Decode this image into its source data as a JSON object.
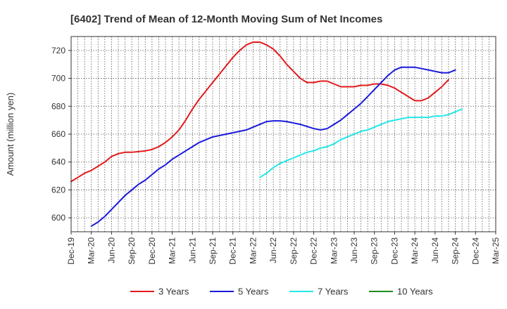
{
  "chart_data": {
    "type": "line",
    "title": "[6402]  Trend of Mean of 12-Month Moving Sum of Net Incomes",
    "ylabel": "Amount (million yen)",
    "xlabel": "",
    "ylim": [
      590,
      730
    ],
    "yticks": [
      600,
      620,
      640,
      660,
      680,
      700,
      720
    ],
    "xticks": [
      "Dec-19",
      "Mar-20",
      "Jun-20",
      "Sep-20",
      "Dec-20",
      "Mar-21",
      "Jun-21",
      "Sep-21",
      "Dec-21",
      "Mar-22",
      "Jun-22",
      "Sep-22",
      "Dec-22",
      "Mar-23",
      "Jun-23",
      "Sep-23",
      "Dec-23",
      "Mar-24",
      "Jun-24",
      "Sep-24",
      "Dec-24",
      "Mar-25"
    ],
    "grid": true,
    "legend_position": "bottom",
    "series": [
      {
        "name": "3 Years",
        "color": "#e31a1c",
        "values": [
          626,
          629,
          632,
          634,
          637,
          640,
          644,
          646,
          647,
          647,
          647.5,
          648,
          649,
          651,
          654,
          658,
          663,
          670,
          678,
          685,
          691,
          697,
          703,
          709,
          715,
          720,
          724,
          726,
          726,
          724,
          721,
          716,
          710,
          705,
          700,
          697,
          697,
          698,
          698,
          696,
          694,
          694,
          694,
          695,
          695,
          696,
          696,
          695,
          693,
          690,
          687,
          684,
          684,
          686,
          690,
          694,
          699
        ]
      },
      {
        "name": "5 Years",
        "color": "#1a1adc",
        "values": [
          null,
          null,
          null,
          594,
          597,
          601,
          606,
          611,
          616,
          620,
          624,
          627,
          631,
          635,
          638,
          642,
          645,
          648,
          651,
          654,
          656,
          658,
          659,
          660,
          661,
          662,
          663,
          665,
          667,
          669,
          669.5,
          669.5,
          669,
          668,
          667,
          665.5,
          664,
          663,
          664,
          667,
          670,
          674,
          678,
          682,
          687,
          692,
          697,
          702,
          706,
          708,
          708,
          708,
          707,
          706,
          705,
          704,
          704,
          706
        ]
      },
      {
        "name": "7 Years",
        "color": "#22e8e8",
        "values": [
          null,
          null,
          null,
          null,
          null,
          null,
          null,
          null,
          null,
          null,
          null,
          null,
          null,
          null,
          null,
          null,
          null,
          null,
          null,
          null,
          null,
          null,
          null,
          null,
          null,
          null,
          null,
          null,
          629,
          632,
          636,
          639,
          641,
          643,
          645,
          647,
          648,
          650,
          651,
          653,
          656,
          658,
          660,
          662,
          663,
          665,
          667,
          669,
          670,
          671,
          672,
          672,
          672,
          672,
          673,
          673,
          674,
          676,
          678
        ]
      },
      {
        "name": "10 Years",
        "color": "#1f8c1f",
        "values": []
      }
    ]
  }
}
